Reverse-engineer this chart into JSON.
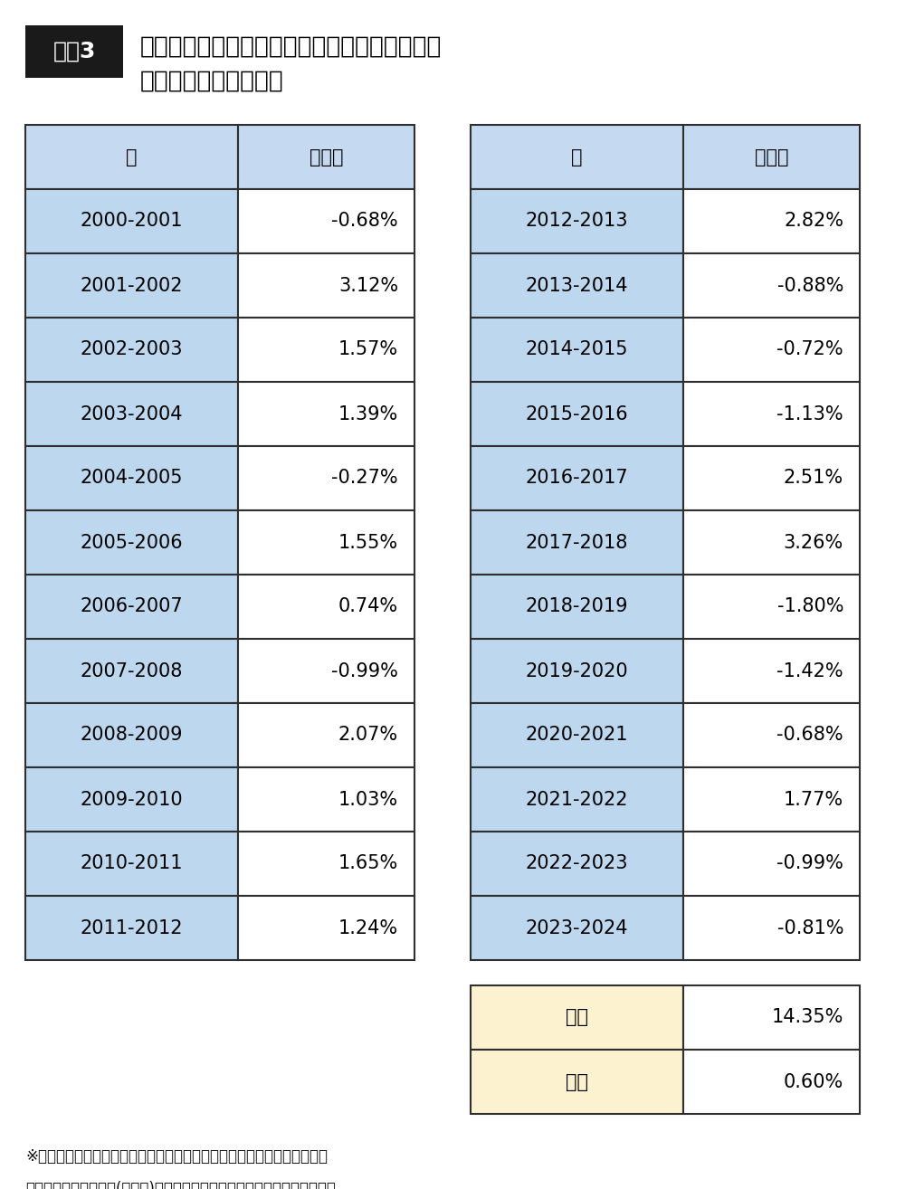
{
  "title_line1": "大納会の終値で買い、大発会の初値または終値",
  "title_line2": "で売った場合の騰落率",
  "badge_text": "図表3",
  "left_table": {
    "years": [
      "2000-2001",
      "2001-2002",
      "2002-2003",
      "2003-2004",
      "2004-2005",
      "2005-2006",
      "2006-2007",
      "2007-2008",
      "2008-2009",
      "2009-2010",
      "2010-2011",
      "2011-2012"
    ],
    "rates": [
      "-0.68%",
      "3.12%",
      "1.57%",
      "1.39%",
      "-0.27%",
      "1.55%",
      "0.74%",
      "-0.99%",
      "2.07%",
      "1.03%",
      "1.65%",
      "1.24%"
    ]
  },
  "right_table": {
    "years": [
      "2012-2013",
      "2013-2014",
      "2014-2015",
      "2015-2016",
      "2016-2017",
      "2017-2018",
      "2018-2019",
      "2019-2020",
      "2020-2021",
      "2021-2022",
      "2022-2023",
      "2023-2024"
    ],
    "rates": [
      "2.82%",
      "-0.88%",
      "-0.72%",
      "-1.13%",
      "2.51%",
      "3.26%",
      "-1.80%",
      "-1.42%",
      "-0.68%",
      "1.77%",
      "-0.99%",
      "-0.81%"
    ]
  },
  "summary": {
    "total_label": "合計",
    "total_value": "14.35%",
    "average_label": "平均",
    "average_value": "0.60%"
  },
  "footer_line1": "※大納会の終値で買い、大発会の初値が大納会の終値と比べてマイナスに",
  "footer_line2": "なりそうであれば売り(損切り)、プラスになりそうなら終値で売った場合。",
  "header_label_year": "年",
  "header_label_rate": "騰落率",
  "header_bg": "#c5d9f1",
  "data_bg": "#bdd7ee",
  "white_bg": "#ffffff",
  "summary_bg": "#fdf2d0",
  "border_color": "#2f2f2f",
  "badge_bg": "#1a1a1a",
  "badge_fg": "#ffffff",
  "fig_bg": "#ffffff"
}
